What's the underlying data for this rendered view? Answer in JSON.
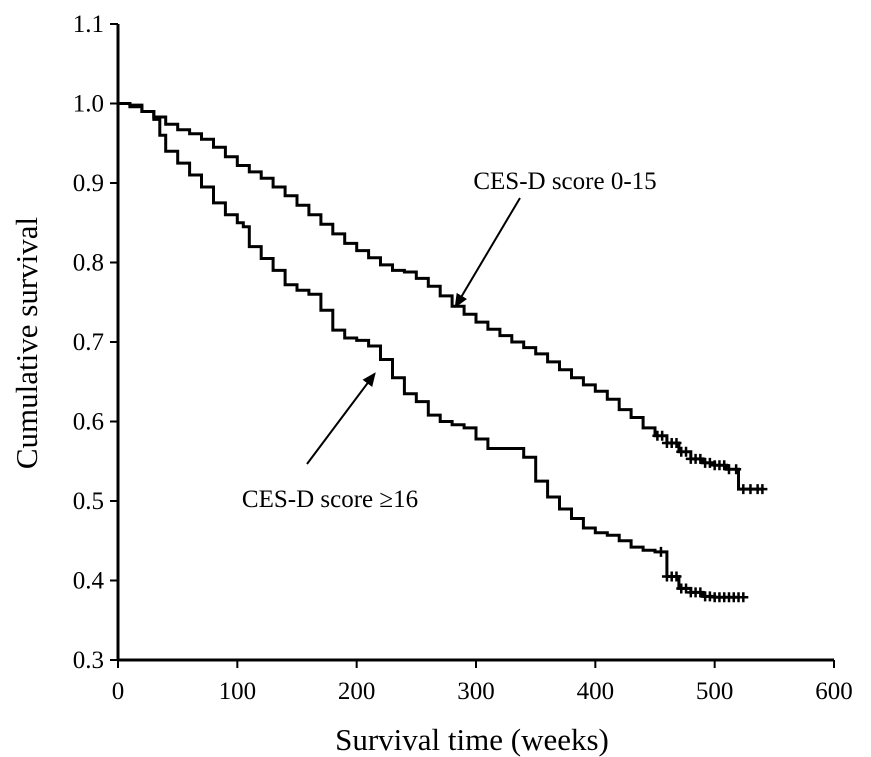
{
  "chart_data": {
    "type": "line",
    "title": "",
    "xlabel": "Survival time (weeks)",
    "ylabel": "Cumulative survival",
    "xlim": [
      0,
      600
    ],
    "ylim": [
      0.3,
      1.1
    ],
    "xticks": [
      0,
      100,
      200,
      300,
      400,
      500,
      600
    ],
    "yticks": [
      0.3,
      0.4,
      0.5,
      0.6,
      0.7,
      0.8,
      0.9,
      1.0,
      1.1
    ],
    "xtick_labels": [
      "0",
      "100",
      "200",
      "300",
      "400",
      "500",
      "600"
    ],
    "ytick_labels": [
      "0.3",
      "0.4",
      "0.5",
      "0.6",
      "0.7",
      "0.8",
      "0.9",
      "1.0",
      "1.1"
    ],
    "grid": false,
    "series": [
      {
        "name": "CES-D score 0-15",
        "step": true,
        "x": [
          0,
          10,
          20,
          30,
          40,
          50,
          60,
          70,
          80,
          90,
          100,
          110,
          120,
          130,
          140,
          150,
          160,
          170,
          180,
          190,
          200,
          210,
          220,
          230,
          240,
          250,
          260,
          270,
          280,
          290,
          300,
          310,
          320,
          330,
          340,
          350,
          360,
          370,
          380,
          390,
          400,
          410,
          420,
          430,
          440,
          450,
          460,
          470,
          480,
          490,
          500,
          510,
          520,
          530,
          540
        ],
        "y": [
          1.0,
          0.996,
          0.99,
          0.983,
          0.974,
          0.967,
          0.962,
          0.955,
          0.945,
          0.933,
          0.922,
          0.914,
          0.906,
          0.895,
          0.884,
          0.872,
          0.86,
          0.848,
          0.836,
          0.824,
          0.815,
          0.806,
          0.797,
          0.79,
          0.788,
          0.78,
          0.77,
          0.758,
          0.745,
          0.735,
          0.725,
          0.716,
          0.708,
          0.7,
          0.693,
          0.685,
          0.675,
          0.665,
          0.655,
          0.646,
          0.638,
          0.628,
          0.615,
          0.605,
          0.592,
          0.582,
          0.573,
          0.562,
          0.553,
          0.548,
          0.545,
          0.54,
          0.515,
          0.515,
          0.515
        ],
        "censored": [
          452,
          456,
          460,
          464,
          468,
          472,
          476,
          480,
          484,
          488,
          492,
          496,
          500,
          504,
          508,
          512,
          518,
          524,
          530,
          536,
          540
        ]
      },
      {
        "name": "CES-D score ≥16",
        "step": true,
        "x": [
          0,
          10,
          20,
          30,
          35,
          40,
          50,
          60,
          70,
          80,
          90,
          100,
          105,
          110,
          120,
          130,
          140,
          150,
          160,
          170,
          180,
          190,
          200,
          210,
          220,
          230,
          240,
          250,
          260,
          270,
          280,
          290,
          300,
          310,
          320,
          330,
          340,
          350,
          360,
          370,
          380,
          390,
          400,
          410,
          420,
          430,
          440,
          450,
          460,
          470,
          480,
          490,
          500,
          510,
          520
        ],
        "y": [
          1.0,
          0.998,
          0.99,
          0.98,
          0.96,
          0.94,
          0.925,
          0.91,
          0.895,
          0.875,
          0.86,
          0.85,
          0.845,
          0.82,
          0.805,
          0.79,
          0.772,
          0.765,
          0.76,
          0.74,
          0.715,
          0.705,
          0.702,
          0.695,
          0.678,
          0.655,
          0.635,
          0.625,
          0.608,
          0.6,
          0.596,
          0.592,
          0.578,
          0.566,
          0.566,
          0.566,
          0.555,
          0.525,
          0.505,
          0.49,
          0.478,
          0.466,
          0.46,
          0.457,
          0.45,
          0.442,
          0.438,
          0.436,
          0.405,
          0.39,
          0.385,
          0.38,
          0.379,
          0.379,
          0.379
        ],
        "censored": [
          455,
          460,
          464,
          468,
          472,
          476,
          480,
          484,
          488,
          492,
          496,
          500,
          504,
          508,
          512,
          516,
          520,
          524
        ]
      }
    ],
    "annotations": [
      {
        "text": "CES-D score 0-15",
        "series": 0,
        "point_to": [
          283,
          0.745
        ]
      },
      {
        "text": "CES-D score ≥16",
        "series": 1,
        "point_to": [
          215,
          0.66
        ]
      }
    ]
  }
}
